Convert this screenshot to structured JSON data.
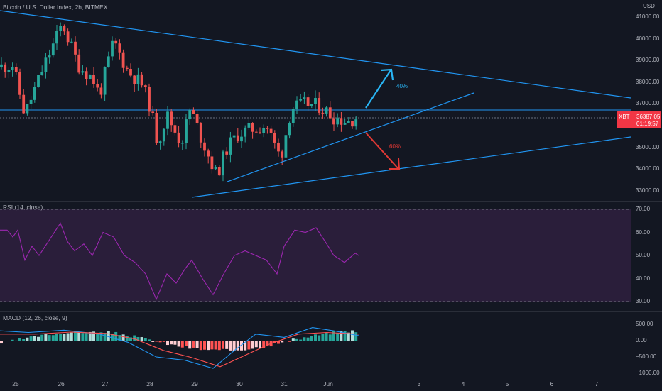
{
  "symbol": {
    "title": "Bitcoin / U.S. Dollar Index, 2h, BITMEX",
    "currency": "USD",
    "ticker": "XBT",
    "last_price": "36387.05",
    "countdown": "01:19:57"
  },
  "price_axis": [
    "41000.00",
    "40000.00",
    "39000.00",
    "38000.00",
    "37000.00",
    "36000.00",
    "35000.00",
    "34000.00",
    "33000.00"
  ],
  "rsi": {
    "legend": "RSI (14, close)",
    "axis": [
      "70.00",
      "60.00",
      "50.00",
      "40.00",
      "30.00"
    ],
    "upper_band": 70,
    "lower_band": 30
  },
  "macd": {
    "legend": "MACD (12, 26, close, 9)",
    "axis": [
      "500.00",
      "0.00",
      "−500.00",
      "−1000.00"
    ]
  },
  "time_axis": [
    "25",
    "26",
    "27",
    "28",
    "29",
    "30",
    "31",
    "Jun",
    "3",
    "4",
    "5",
    "6",
    "7"
  ],
  "annotations": {
    "up_probability": "40%",
    "down_probability": "60%"
  },
  "colors": {
    "background": "#131722",
    "bull": "#26a69a",
    "bear": "#ef5350",
    "trendline": "#2196f3",
    "rsi_line": "#9c27b0",
    "rsi_band": "#2a1e3a",
    "macd_line": "#2196f3",
    "signal_line": "#ff5252",
    "hist_up": "#26a69a",
    "hist_up_light": "#b2dfdb",
    "hist_down": "#ff5252",
    "hist_down_light": "#ffcdd2",
    "up_arrow": "#29b6f6",
    "down_arrow": "#e53935",
    "price_tag": "#f23645"
  }
}
